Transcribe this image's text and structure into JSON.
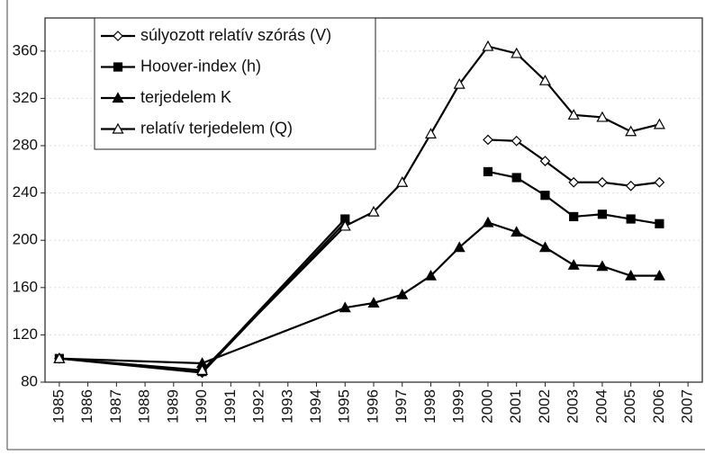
{
  "chart_data": {
    "type": "line",
    "x": [
      1985,
      1990,
      1995,
      1996,
      1997,
      1998,
      1999,
      2000,
      2001,
      2002,
      2003,
      2004,
      2005,
      2006
    ],
    "series": [
      {
        "name": "súlyozott relatív szórás (V)",
        "color": "#000000",
        "marker": "diamond-open",
        "values": [
          100,
          88,
          215,
          null,
          null,
          null,
          null,
          285,
          284,
          267,
          249,
          249,
          246,
          249
        ]
      },
      {
        "name": "Hoover-index (h)",
        "color": "#000000",
        "marker": "square-filled",
        "values": [
          100,
          89,
          218,
          null,
          null,
          null,
          null,
          258,
          253,
          238,
          220,
          222,
          218,
          214
        ]
      },
      {
        "name": "terjedelem K",
        "color": "#000000",
        "marker": "triangle-filled",
        "values": [
          100,
          96,
          143,
          147,
          154,
          170,
          194,
          215,
          207,
          194,
          179,
          178,
          170,
          170
        ]
      },
      {
        "name": "relatív terjedelem (Q)",
        "color": "#000000",
        "marker": "triangle-open",
        "values": [
          100,
          90,
          212,
          224,
          249,
          290,
          332,
          364,
          358,
          335,
          306,
          304,
          292,
          298
        ]
      }
    ],
    "xlim": [
      1984.5,
      2007.5
    ],
    "xticks": [
      1985,
      1986,
      1987,
      1988,
      1989,
      1990,
      1991,
      1992,
      1993,
      1994,
      1995,
      1996,
      1997,
      1998,
      1999,
      2000,
      2001,
      2002,
      2003,
      2004,
      2005,
      2006,
      2007
    ],
    "ylim": [
      80,
      388
    ],
    "yticks": [
      80,
      120,
      160,
      200,
      240,
      280,
      320,
      360
    ],
    "grid": true
  }
}
